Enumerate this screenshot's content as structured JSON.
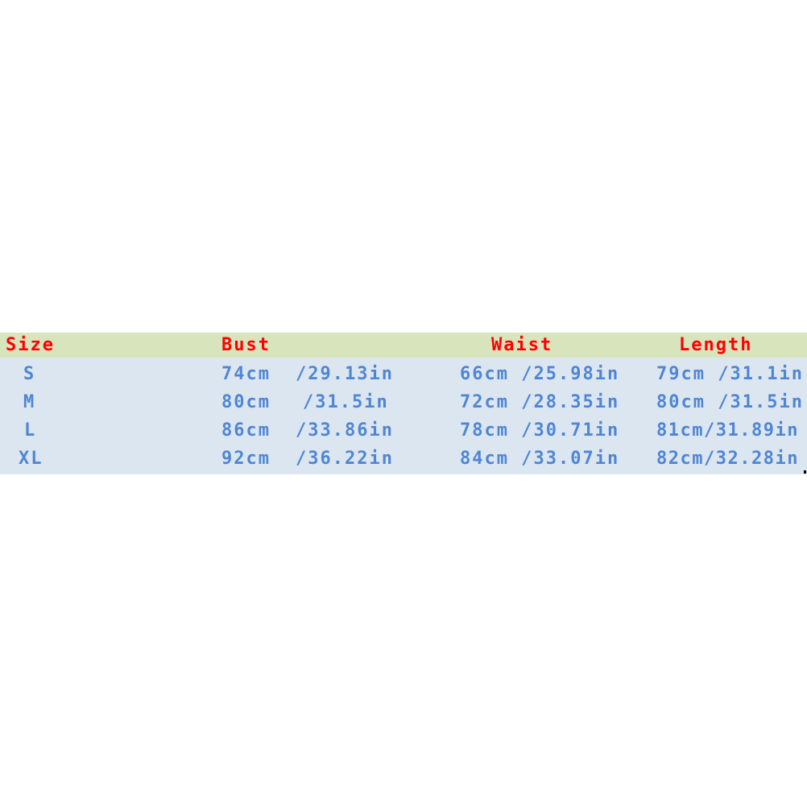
{
  "table": {
    "headers": {
      "size": "Size",
      "bust": "Bust",
      "waist": "Waist",
      "length": "Length"
    },
    "rows": [
      {
        "size": "S",
        "bust_cm": "74cm",
        "bust_in": "/29.13in",
        "waist": "66cm /25.98in",
        "length": "79cm /31.1in"
      },
      {
        "size": "M",
        "bust_cm": "80cm",
        "bust_in": "/31.5in",
        "waist": "72cm /28.35in",
        "length": "80cm /31.5in"
      },
      {
        "size": "L",
        "bust_cm": "86cm",
        "bust_in": "/33.86in",
        "waist": "78cm /30.71in",
        "length": "81cm/31.89in"
      },
      {
        "size": "XL",
        "bust_cm": "92cm",
        "bust_in": "/36.22in",
        "waist": "84cm /33.07in",
        "length": "82cm/32.28in"
      }
    ]
  },
  "colors": {
    "header_bg": "#d8e4bc",
    "body_bg": "#dce6f1",
    "header_text": "#ff0000",
    "body_text": "#4f86d4"
  }
}
